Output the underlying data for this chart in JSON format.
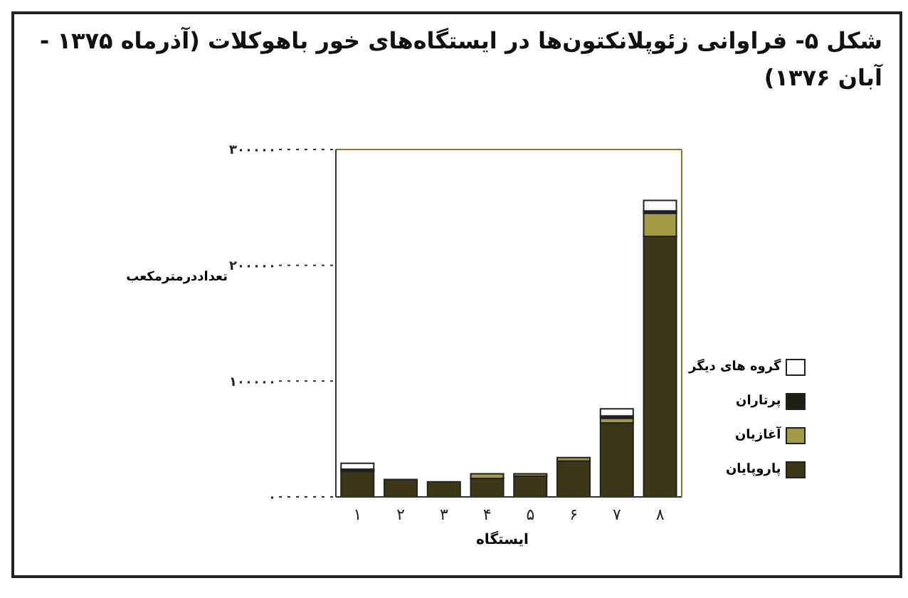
{
  "chart_data": {
    "type": "bar",
    "title": "شکل ۵- فراوانی زئوپلانکتون‌ها در ایستگاه‌های خور باهوکلات (آذرماه ۱۳۷۵ - آبان ۱۳۷۶)",
    "xlabel": "ایستگاه",
    "ylabel": "تعداددرمترمکعب",
    "categories": [
      "۱",
      "۲",
      "۳",
      "۴",
      "۵",
      "۶",
      "۷",
      "۸"
    ],
    "stacked": true,
    "series": [
      {
        "name": "پاروپایان",
        "color": "#3b3718",
        "values": [
          22000,
          15000,
          13000,
          16000,
          18000,
          31000,
          64000,
          225000
        ]
      },
      {
        "name": "آغازیان",
        "color": "#a39b45",
        "values": [
          0,
          0,
          0,
          4000,
          2000,
          3000,
          4000,
          20000
        ]
      },
      {
        "name": "پرتاران",
        "color": "#1f1e12",
        "values": [
          2000,
          0,
          0,
          0,
          0,
          0,
          2000,
          2000
        ]
      },
      {
        "name": "گروه های دیگر",
        "color": "#ffffff",
        "values": [
          5000,
          0,
          0,
          0,
          0,
          0,
          6000,
          9000
        ]
      }
    ],
    "ylim": [
      0,
      300000
    ],
    "yticks": [
      {
        "value": 0,
        "label": "۰"
      },
      {
        "value": 100000,
        "label": "۱۰۰۰۰۰"
      },
      {
        "value": 200000,
        "label": "۲۰۰۰۰۰"
      },
      {
        "value": 300000,
        "label": "۳۰۰۰۰۰"
      }
    ],
    "grid": false,
    "legend": "bottom right"
  }
}
